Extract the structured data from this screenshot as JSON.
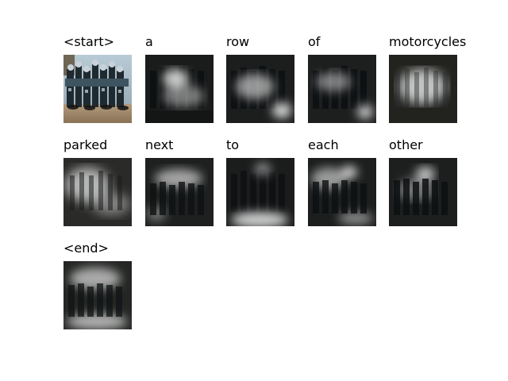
{
  "tokens": [
    {
      "word": "<start>",
      "kind": "photo"
    },
    {
      "word": "a",
      "kind": "attention"
    },
    {
      "word": "row",
      "kind": "attention"
    },
    {
      "word": "of",
      "kind": "attention"
    },
    {
      "word": "motorcycles",
      "kind": "attention"
    },
    {
      "word": "parked",
      "kind": "attention"
    },
    {
      "word": "next",
      "kind": "attention"
    },
    {
      "word": "to",
      "kind": "attention"
    },
    {
      "word": "each",
      "kind": "attention"
    },
    {
      "word": "other",
      "kind": "attention"
    },
    {
      "word": "<end>",
      "kind": "attention"
    }
  ]
}
